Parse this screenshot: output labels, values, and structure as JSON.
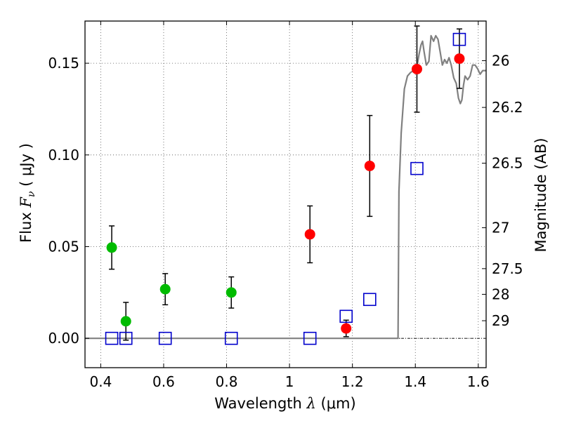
{
  "chart_data": {
    "type": "scatter",
    "xlabel": "Wavelength  λ (μm)",
    "ylabel": "Flux  F_ν  ( μJy )",
    "ylabel_parts": {
      "prefix": "Flux  ",
      "symbol": "F",
      "subscript": "ν",
      "suffix": "  ( μJy )"
    },
    "xlabel_parts": {
      "prefix": "Wavelength  ",
      "symbol": "λ",
      "suffix": " (μm)"
    },
    "y2label": "Magnitude (AB)",
    "xlim": [
      0.35,
      1.625
    ],
    "ylim": [
      -0.016,
      0.173
    ],
    "grid": true,
    "xticks": [
      0.4,
      0.6,
      0.8,
      1.0,
      1.2,
      1.4,
      1.6
    ],
    "xtick_labels": [
      "0.4",
      "0.6",
      "0.8",
      "1",
      "1.2",
      "1.4",
      "1.6"
    ],
    "yticks": [
      0.0,
      0.05,
      0.1,
      0.15
    ],
    "ytick_labels": [
      "0.00",
      "0.05",
      "0.10",
      "0.15"
    ],
    "y2ticks": [
      {
        "label": "26",
        "flux": 0.1514
      },
      {
        "label": "26.2",
        "flux": 0.1259
      },
      {
        "label": "26.5",
        "flux": 0.0955
      },
      {
        "label": "27",
        "flux": 0.0603
      },
      {
        "label": "27.5",
        "flux": 0.038
      },
      {
        "label": "28",
        "flux": 0.024
      },
      {
        "label": "29",
        "flux": 0.0096
      }
    ],
    "series": [
      {
        "name": "green-detections",
        "color": "#00bb00",
        "marker": "circle",
        "points": [
          {
            "x": 0.435,
            "y": 0.0495,
            "err": 0.0118
          },
          {
            "x": 0.48,
            "y": 0.0093,
            "err": 0.0103
          },
          {
            "x": 0.605,
            "y": 0.0268,
            "err": 0.0085
          },
          {
            "x": 0.815,
            "y": 0.025,
            "err": 0.0085
          }
        ]
      },
      {
        "name": "red-detections",
        "color": "#ff0000",
        "marker": "circle",
        "points": [
          {
            "x": 1.065,
            "y": 0.0567,
            "err": 0.0155
          },
          {
            "x": 1.18,
            "y": 0.0054,
            "err": 0.0045
          },
          {
            "x": 1.255,
            "y": 0.094,
            "err": 0.0275
          },
          {
            "x": 1.405,
            "y": 0.1468,
            "err": 0.0235
          },
          {
            "x": 1.54,
            "y": 0.1525,
            "err": 0.0162
          }
        ]
      },
      {
        "name": "model-photometry",
        "color": "#0000cc",
        "marker": "square-open",
        "points": [
          {
            "x": 0.435,
            "y": 0.0
          },
          {
            "x": 0.48,
            "y": 0.0
          },
          {
            "x": 0.605,
            "y": 0.0
          },
          {
            "x": 0.815,
            "y": 0.0
          },
          {
            "x": 1.065,
            "y": 0.0
          },
          {
            "x": 1.18,
            "y": 0.012
          },
          {
            "x": 1.255,
            "y": 0.0212
          },
          {
            "x": 1.405,
            "y": 0.0926
          },
          {
            "x": 1.54,
            "y": 0.163
          }
        ]
      }
    ],
    "model_spectrum": {
      "color": "#808080",
      "x": [
        0.35,
        1.345,
        1.348,
        1.355,
        1.365,
        1.375,
        1.385,
        1.395,
        1.405,
        1.412,
        1.418,
        1.423,
        1.428,
        1.435,
        1.443,
        1.45,
        1.458,
        1.465,
        1.472,
        1.478,
        1.486,
        1.493,
        1.5,
        1.507,
        1.514,
        1.522,
        1.53,
        1.537,
        1.543,
        1.548,
        1.553,
        1.558,
        1.566,
        1.574,
        1.582,
        1.59,
        1.598,
        1.606,
        1.614,
        1.625
      ],
      "y": [
        0.0,
        0.0,
        0.08,
        0.112,
        0.136,
        0.143,
        0.145,
        0.146,
        0.148,
        0.155,
        0.16,
        0.162,
        0.156,
        0.149,
        0.151,
        0.165,
        0.162,
        0.165,
        0.163,
        0.157,
        0.149,
        0.152,
        0.15,
        0.153,
        0.149,
        0.142,
        0.139,
        0.131,
        0.128,
        0.13,
        0.138,
        0.143,
        0.141,
        0.143,
        0.149,
        0.149,
        0.147,
        0.144,
        0.146,
        0.146
      ]
    }
  }
}
